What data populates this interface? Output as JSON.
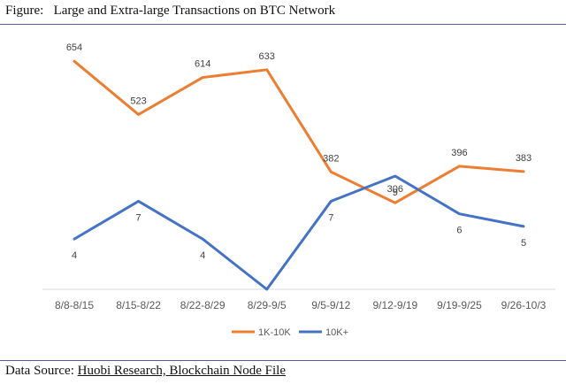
{
  "figure": {
    "title": "Figure:   Large and Extra-large Transactions on BTC Network",
    "source_prefix": "Data Source: ",
    "source_text": "Huobi Research, Blockchain Node File"
  },
  "chart_data": {
    "type": "line",
    "categories": [
      "8/8-8/15",
      "8/15-8/22",
      "8/22-8/29",
      "8/29-9/5",
      "9/5-9/12",
      "9/12-9/19",
      "9/19-9/25",
      "9/26-10/3"
    ],
    "series": [
      {
        "name": "1K-10K",
        "color": "#ED7D31",
        "values": [
          654,
          523,
          614,
          633,
          382,
          306,
          396,
          383
        ]
      },
      {
        "name": "10K+",
        "color": "#4472C4",
        "values": [
          4,
          7,
          4,
          0,
          7,
          9,
          6,
          5
        ]
      }
    ],
    "data_labels": {
      "1K-10K": [
        "654",
        "523",
        "614",
        "633",
        "382",
        "306",
        "396",
        "383"
      ],
      "10K+": [
        "4",
        "7",
        "4",
        "",
        "7",
        "9",
        "6",
        "5"
      ]
    },
    "axes": "secondary-y for 10K+; no y-axis labels shown",
    "legend": "bottom",
    "grid": false
  }
}
